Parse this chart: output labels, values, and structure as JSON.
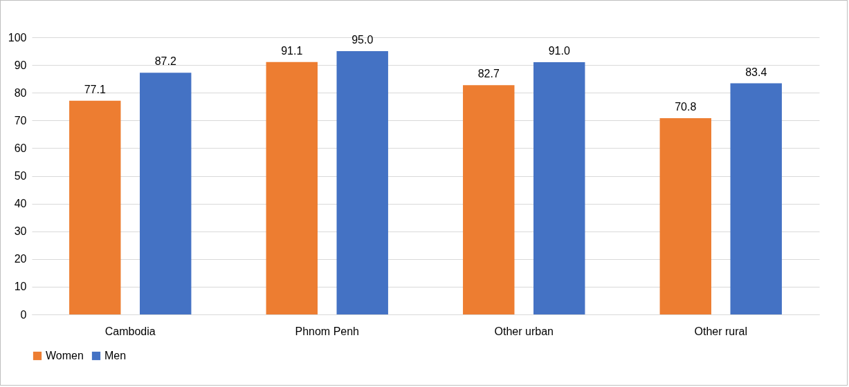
{
  "chart_data": {
    "type": "bar",
    "categories": [
      "Cambodia",
      "Phnom Penh",
      "Other urban",
      "Other rural"
    ],
    "series": [
      {
        "name": "Women",
        "color": "#ed7d31",
        "values": [
          77.1,
          91.1,
          82.7,
          70.8
        ],
        "value_labels": [
          "77.1",
          "91.1",
          "82.7",
          "70.8"
        ]
      },
      {
        "name": "Men",
        "color": "#4472c4",
        "values": [
          87.2,
          95.0,
          91.0,
          83.4
        ],
        "value_labels": [
          "87.2",
          "95.0",
          "91.0",
          "83.4"
        ]
      }
    ],
    "ylim": [
      0,
      100
    ],
    "yticks": [
      0,
      10,
      20,
      30,
      40,
      50,
      60,
      70,
      80,
      90,
      100
    ],
    "grid": "y",
    "legend": "bottom"
  }
}
